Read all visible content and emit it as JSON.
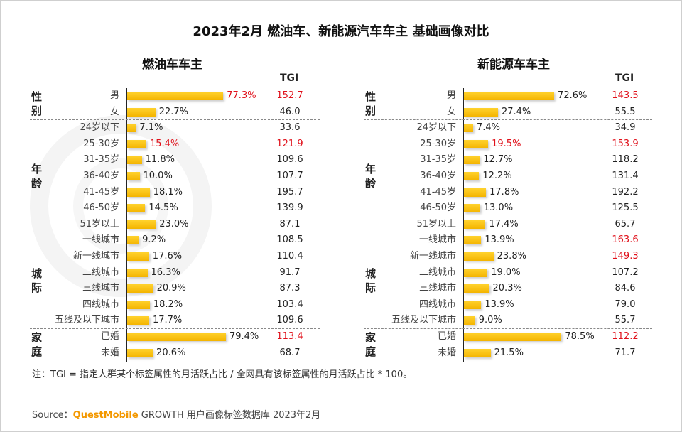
{
  "title": "2023年2月 燃油车、新能源汽车车主 基础画像对比",
  "watermark": "QUESTMOBILE",
  "tgi_header": "TGI",
  "highlight_color": "#e0101a",
  "bar_color": "#f9c300",
  "chart_data": [
    {
      "type": "bar",
      "orientation": "horizontal",
      "title": "燃油车车主",
      "unit": "%",
      "groups": [
        {
          "name": "性别",
          "rows": [
            0,
            1
          ]
        },
        {
          "name": "年龄",
          "rows": [
            2,
            3,
            4,
            5,
            6,
            7,
            8
          ]
        },
        {
          "name": "城际",
          "rows": [
            9,
            10,
            11,
            12,
            13,
            14
          ]
        },
        {
          "name": "家庭",
          "rows": [
            15,
            16
          ]
        }
      ],
      "categories": [
        "男",
        "女",
        "24岁以下",
        "25-30岁",
        "31-35岁",
        "36-40岁",
        "41-45岁",
        "46-50岁",
        "51岁以上",
        "一线城市",
        "新一线城市",
        "二线城市",
        "三线城市",
        "四线城市",
        "五线及以下城市",
        "已婚",
        "未婚"
      ],
      "values": [
        77.3,
        22.7,
        7.1,
        15.4,
        11.8,
        10.0,
        18.1,
        14.5,
        23.0,
        9.2,
        17.6,
        16.3,
        20.9,
        18.2,
        17.7,
        79.4,
        20.6
      ],
      "tgi": [
        "152.7",
        "46.0",
        "33.6",
        "121.9",
        "109.6",
        "107.7",
        "195.7",
        "139.9",
        "87.1",
        "108.5",
        "110.4",
        "91.7",
        "87.3",
        "103.4",
        "109.6",
        "113.4",
        "68.7"
      ],
      "highlight_pct": [
        0,
        3
      ],
      "highlight_tgi": [
        0,
        3,
        15
      ]
    },
    {
      "type": "bar",
      "orientation": "horizontal",
      "title": "新能源车车主",
      "unit": "%",
      "groups": [
        {
          "name": "性别",
          "rows": [
            0,
            1
          ]
        },
        {
          "name": "年龄",
          "rows": [
            2,
            3,
            4,
            5,
            6,
            7,
            8
          ]
        },
        {
          "name": "城际",
          "rows": [
            9,
            10,
            11,
            12,
            13,
            14
          ]
        },
        {
          "name": "家庭",
          "rows": [
            15,
            16
          ]
        }
      ],
      "categories": [
        "男",
        "女",
        "24岁以下",
        "25-30岁",
        "31-35岁",
        "36-40岁",
        "41-45岁",
        "46-50岁",
        "51岁以上",
        "一线城市",
        "新一线城市",
        "二线城市",
        "三线城市",
        "四线城市",
        "五线及以下城市",
        "已婚",
        "未婚"
      ],
      "values": [
        72.6,
        27.4,
        7.4,
        19.5,
        12.7,
        12.2,
        17.8,
        13.0,
        17.4,
        13.9,
        23.8,
        19.0,
        20.3,
        13.9,
        9.0,
        78.5,
        21.5
      ],
      "tgi": [
        "143.5",
        "55.5",
        "34.9",
        "153.9",
        "118.2",
        "131.4",
        "192.2",
        "125.5",
        "65.7",
        "163.6",
        "149.3",
        "107.2",
        "84.6",
        "79.0",
        "55.7",
        "112.2",
        "71.7"
      ],
      "highlight_pct": [
        3
      ],
      "highlight_tgi": [
        0,
        3,
        9,
        10,
        15
      ]
    }
  ],
  "note": "注：TGI = 指定人群某个标签属性的月活跃占比 / 全网具有该标签属性的月活跃占比 * 100。",
  "source": {
    "prefix": "Source：",
    "brand": "QuestMobile",
    "text": " GROWTH 用户画像标签数据库 2023年2月"
  }
}
